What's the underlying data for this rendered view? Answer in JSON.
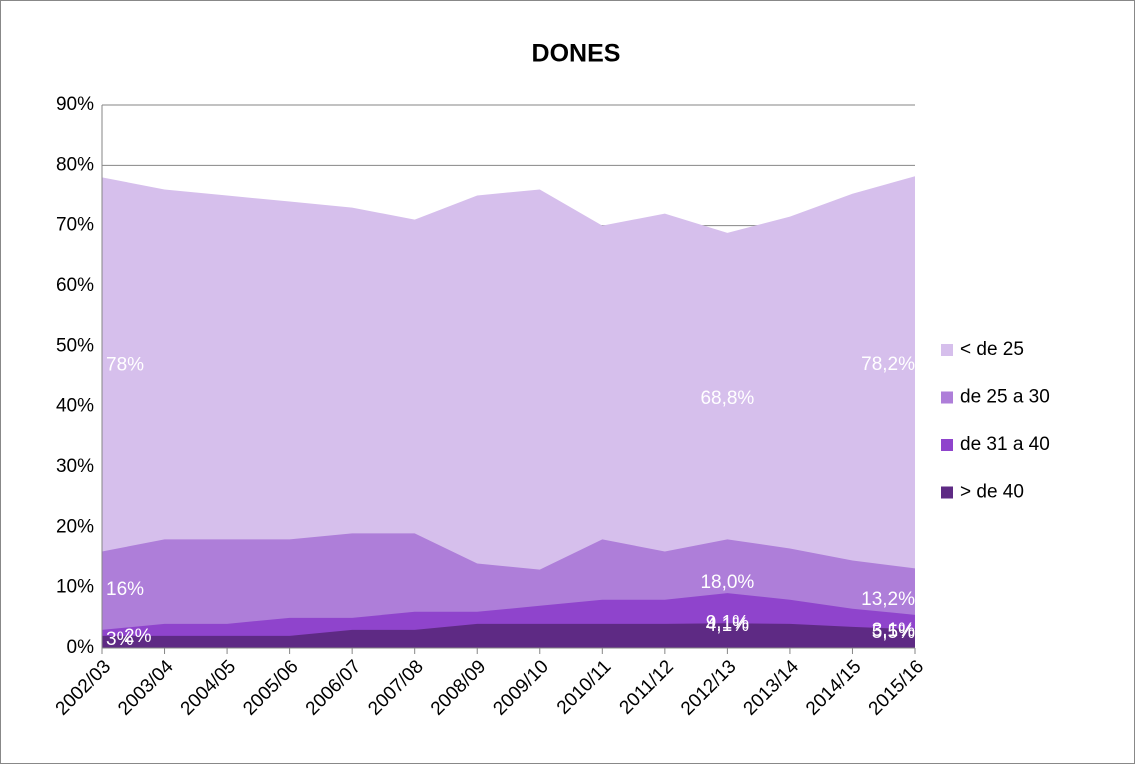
{
  "chart_data": {
    "type": "area",
    "title": "DONES",
    "categories": [
      "2002/03",
      "2003/04",
      "2004/05",
      "2005/06",
      "2006/07",
      "2007/08",
      "2008/09",
      "2009/10",
      "2010/11",
      "2011/12",
      "2012/13",
      "2013/14",
      "2014/15",
      "2015/16"
    ],
    "series": [
      {
        "name": "< de 25",
        "color": "#d6bfec",
        "values": [
          78,
          76,
          75,
          74,
          73,
          71,
          75,
          76,
          70,
          72,
          68.8,
          71.5,
          75.3,
          78.2
        ],
        "value_labels": [
          "78%",
          null,
          null,
          null,
          null,
          null,
          null,
          null,
          null,
          null,
          "68,8%",
          null,
          null,
          "78,2%"
        ]
      },
      {
        "name": "de 25 a 30",
        "color": "#ae7ed9",
        "values": [
          16,
          18,
          18,
          18,
          19,
          19,
          14,
          13,
          18,
          16,
          18.0,
          16.5,
          14.5,
          13.2
        ],
        "value_labels": [
          "16%",
          null,
          null,
          null,
          null,
          null,
          null,
          null,
          null,
          null,
          "18,0%",
          null,
          null,
          "13,2%"
        ]
      },
      {
        "name": "de 31 a 40",
        "color": "#8f44cc",
        "values": [
          3,
          4,
          4,
          5,
          5,
          6,
          6,
          7,
          8,
          8,
          9.1,
          8,
          6.5,
          5.5
        ],
        "value_labels": [
          "3%",
          null,
          null,
          null,
          null,
          null,
          null,
          null,
          null,
          null,
          "9,1%",
          null,
          null,
          "5,5%"
        ]
      },
      {
        "name": "> de 40",
        "color": "#5e2a84",
        "values": [
          2,
          2,
          2,
          2,
          3,
          3,
          4,
          4,
          4,
          4,
          4.1,
          4,
          3.5,
          3.1
        ],
        "value_labels": [
          "2%",
          null,
          null,
          null,
          null,
          null,
          null,
          null,
          null,
          null,
          "4,1%",
          null,
          null,
          "3,1%"
        ]
      }
    ],
    "ylim": [
      0,
      90
    ],
    "yticks": [
      {
        "value": 0,
        "label": "0%"
      },
      {
        "value": 10,
        "label": "10%"
      },
      {
        "value": 20,
        "label": "20%"
      },
      {
        "value": 30,
        "label": "30%"
      },
      {
        "value": 40,
        "label": "40%"
      },
      {
        "value": 50,
        "label": "50%"
      },
      {
        "value": 60,
        "label": "60%"
      },
      {
        "value": 70,
        "label": "70%"
      },
      {
        "value": 80,
        "label": "80%"
      },
      {
        "value": 90,
        "label": "90%"
      }
    ],
    "grid": true,
    "legend": "right"
  }
}
